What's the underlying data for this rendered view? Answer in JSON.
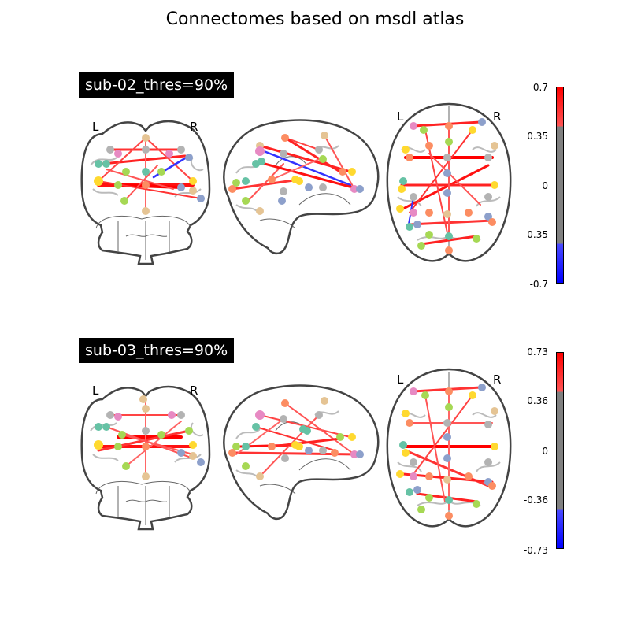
{
  "title": "Connectomes based on msdl atlas",
  "panels": [
    {
      "label": "sub-02_thres=90%",
      "left_marker": "L",
      "right_marker": "R",
      "axial_left_marker": "L",
      "axial_right_marker": "R",
      "colorbar": {
        "max": "0.7",
        "upper": "0.35",
        "zero": "0",
        "lower": "-0.35",
        "min": "-0.7"
      }
    },
    {
      "label": "sub-03_thres=90%",
      "left_marker": "L",
      "right_marker": "R",
      "axial_left_marker": "L",
      "axial_right_marker": "R",
      "colorbar": {
        "max": "0.73",
        "upper": "0.36",
        "zero": "0",
        "lower": "-0.36",
        "min": "-0.73"
      }
    }
  ],
  "colors": {
    "positive_strong": "#ff0000",
    "positive_weak": "#ff5555",
    "negative": "#2222ff",
    "neutral": "#808080",
    "node_palette": [
      "#66c2a5",
      "#fc8d62",
      "#8da0cb",
      "#e78ac3",
      "#a6d854",
      "#ffd92f",
      "#e5c494",
      "#b3b3b3"
    ]
  }
}
